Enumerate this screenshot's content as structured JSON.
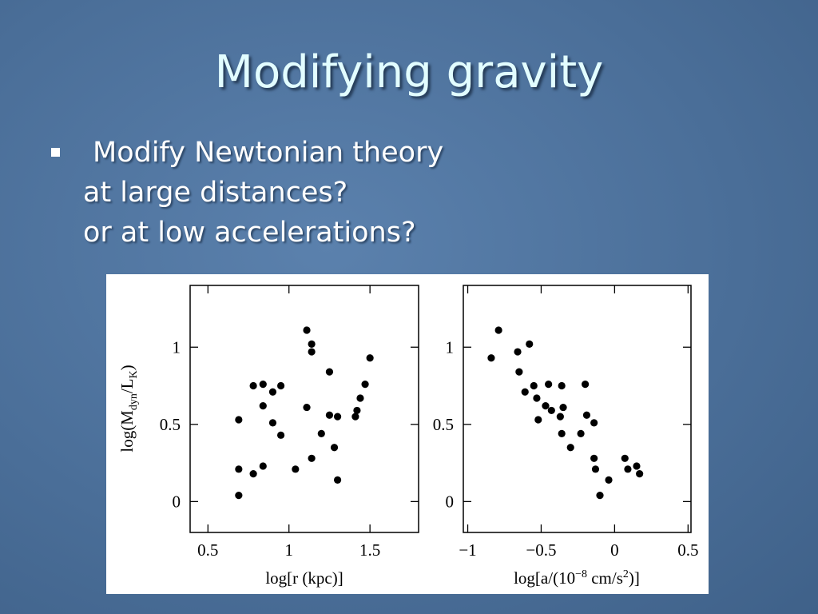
{
  "slide": {
    "title": "Modifying gravity",
    "bullets": [
      {
        "lines": [
          "Modify Newtonian theory",
          "at large distances?",
          "or at low accelerations?"
        ]
      }
    ]
  },
  "chart_data": [
    {
      "type": "scatter",
      "color": "#000000",
      "x_label": "log[r (kpc)]",
      "y_label": [
        "log(M",
        "dyn",
        "/L",
        "K",
        ")"
      ],
      "xlim": [
        0.39,
        1.8
      ],
      "ylim": [
        -0.2,
        1.4
      ],
      "xticks": [
        0.5,
        1,
        1.5
      ],
      "yticks": [
        0,
        0.5,
        1
      ],
      "x": [
        1.11,
        1.14,
        1.14,
        1.5,
        1.25,
        0.78,
        0.84,
        0.95,
        0.9,
        1.47,
        1.44,
        0.84,
        1.11,
        1.42,
        1.41,
        1.25,
        1.3,
        0.69,
        0.9,
        0.95,
        1.2,
        1.28,
        1.14,
        0.84,
        0.69,
        1.04,
        0.78,
        1.3,
        0.69
      ],
      "values": [
        1.11,
        1.02,
        0.97,
        0.93,
        0.84,
        0.75,
        0.76,
        0.75,
        0.71,
        0.76,
        0.67,
        0.62,
        0.61,
        0.59,
        0.55,
        0.56,
        0.55,
        0.53,
        0.51,
        0.43,
        0.44,
        0.35,
        0.28,
        0.23,
        0.21,
        0.21,
        0.18,
        0.14,
        0.04
      ]
    },
    {
      "type": "scatter",
      "color": "#000000",
      "x_label": [
        "log[a/(10",
        "−8",
        " cm/s",
        "2",
        ")]"
      ],
      "xlim": [
        -1.03,
        0.52
      ],
      "ylim": [
        -0.2,
        1.4
      ],
      "xticks": [
        {
          "value": -1,
          "label": "−1"
        },
        {
          "value": -0.5,
          "label": "−0.5"
        },
        0,
        0.5
      ],
      "yticks": [
        0,
        0.5,
        1
      ],
      "x": [
        -0.79,
        -0.84,
        -0.58,
        -0.66,
        -0.65,
        -0.45,
        -0.36,
        -0.2,
        -0.55,
        -0.61,
        -0.53,
        -0.47,
        -0.43,
        -0.35,
        -0.37,
        -0.19,
        -0.52,
        -0.14,
        -0.36,
        -0.23,
        -0.3,
        -0.14,
        0.07,
        0.15,
        -0.13,
        0.09,
        -0.04,
        0.17,
        -0.1
      ],
      "values": [
        1.11,
        0.93,
        1.02,
        0.97,
        0.84,
        0.76,
        0.75,
        0.76,
        0.75,
        0.71,
        0.67,
        0.62,
        0.59,
        0.61,
        0.55,
        0.56,
        0.53,
        0.51,
        0.44,
        0.44,
        0.35,
        0.28,
        0.28,
        0.23,
        0.21,
        0.21,
        0.14,
        0.18,
        0.04
      ]
    }
  ]
}
